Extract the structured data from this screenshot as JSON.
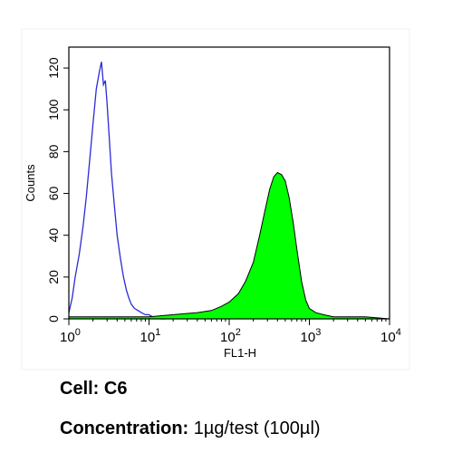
{
  "chart_data": {
    "type": "area",
    "xlabel": "FL1-H",
    "ylabel": "Counts",
    "xscale": "log",
    "xlim": [
      1,
      10000
    ],
    "ylim": [
      0,
      130
    ],
    "yticks": [
      0,
      20,
      40,
      60,
      80,
      100,
      120
    ],
    "xticks": [
      {
        "value": 1,
        "base": "10",
        "exp": "0"
      },
      {
        "value": 10,
        "base": "10",
        "exp": "1"
      },
      {
        "value": 100,
        "base": "10",
        "exp": "2"
      },
      {
        "value": 1000,
        "base": "10",
        "exp": "3"
      },
      {
        "value": 10000,
        "base": "10",
        "exp": "4"
      }
    ],
    "series": [
      {
        "style": "outline",
        "color": "#2b2bd6",
        "x": [
          1.0,
          1.1,
          1.2,
          1.35,
          1.5,
          1.65,
          1.8,
          2.0,
          2.2,
          2.4,
          2.55,
          2.7,
          2.85,
          3.0,
          3.2,
          3.4,
          3.7,
          4.0,
          4.4,
          4.8,
          5.2,
          5.6,
          6.0,
          6.6,
          7.3,
          8.0,
          9.0,
          10.0,
          11.0,
          12.5,
          14.0,
          16.0
        ],
        "y": [
          3,
          10,
          20,
          31,
          44,
          58,
          74,
          93,
          110,
          118,
          123,
          112,
          114,
          103,
          86,
          70,
          54,
          40,
          29,
          20,
          14,
          10,
          7,
          5,
          4,
          3,
          2,
          2,
          1,
          1,
          0,
          0
        ]
      },
      {
        "style": "filled",
        "color": "#00ff00",
        "stroke": "#000000",
        "x": [
          1.0,
          2.0,
          5.0,
          10.0,
          20.0,
          40.0,
          60.0,
          80.0,
          100.0,
          130.0,
          160.0,
          200.0,
          240.0,
          280.0,
          320.0,
          360.0,
          400.0,
          450.0,
          500.0,
          560.0,
          630.0,
          700.0,
          800.0,
          900.0,
          1000.0,
          1200.0,
          1500.0,
          2000.0,
          3000.0,
          5000.0,
          10000.0
        ],
        "y": [
          1,
          1,
          1,
          1,
          2,
          3,
          4,
          6,
          8,
          12,
          18,
          27,
          40,
          52,
          62,
          68,
          70,
          69,
          66,
          58,
          46,
          33,
          18,
          9,
          5,
          3,
          2,
          1,
          1,
          1,
          0
        ]
      }
    ]
  },
  "captions": {
    "cell_label": "Cell:",
    "cell_value": "C6",
    "conc_label": "Concentration:",
    "conc_value": "1µg/test (100µl)"
  }
}
